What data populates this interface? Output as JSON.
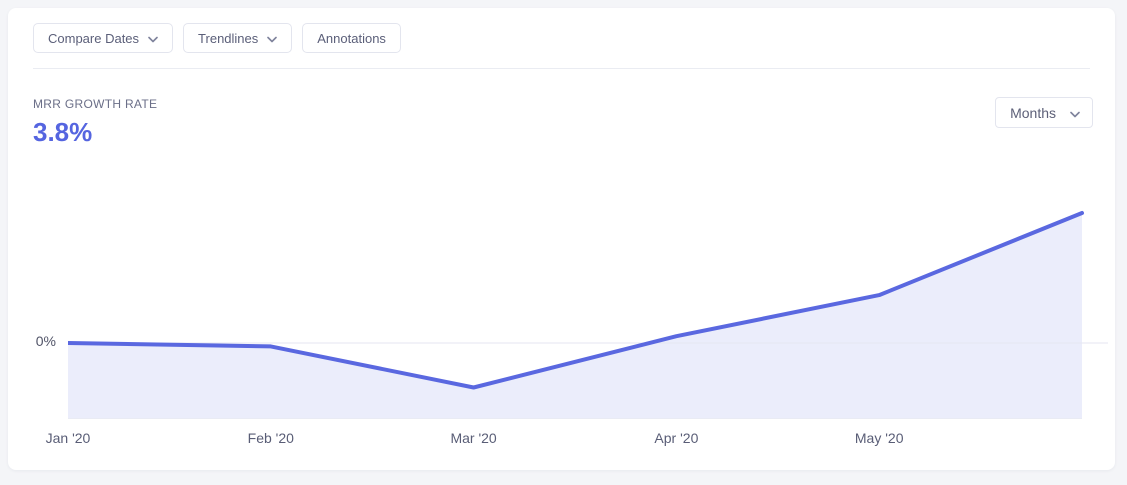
{
  "toolbar": {
    "compare_dates_label": "Compare Dates",
    "trendlines_label": "Trendlines",
    "annotations_label": "Annotations"
  },
  "metric": {
    "label": "MRR GROWTH RATE",
    "value": "3.8%"
  },
  "interval_select": {
    "value": "Months"
  },
  "chart_data": {
    "type": "area",
    "title": "MRR GROWTH RATE",
    "x_labels": [
      "Jan '20",
      "Feb '20",
      "Mar '20",
      "Apr '20",
      "May '20",
      ""
    ],
    "values": [
      0.0,
      -0.1,
      -1.3,
      0.2,
      1.4,
      3.8
    ],
    "unit": "%",
    "y_zero_label": "0%",
    "y_axis": {
      "zero_gridline_only": true,
      "approx_range": [
        -2.2,
        3.8
      ]
    },
    "legend": "none",
    "line_color": "#5a68e0",
    "fill_color": "#ebedfb",
    "gridline_color": "#e4e6f0",
    "baseline_color": "#e9ebf4"
  },
  "colors": {
    "page_background": "#f4f5f8",
    "card_background": "#ffffff",
    "accent": "#5565e0",
    "button_border": "#e3e5ee",
    "button_text": "#5b5f79",
    "axis_text": "#595d76"
  }
}
